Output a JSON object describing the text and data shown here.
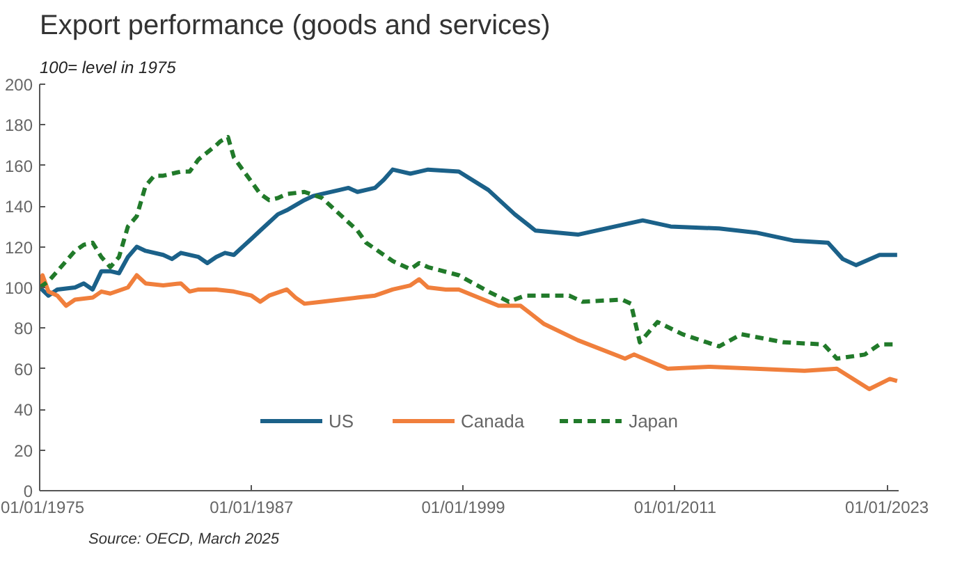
{
  "chart_data": {
    "type": "line",
    "title": "Export performance (goods and services)",
    "subtitle": "100= level in 1975",
    "annotations": [
      "Source: OECD, March 2025"
    ],
    "xlim": [
      "1975-01-01",
      "2023-09-01"
    ],
    "xticks": [
      {
        "value": "1975-01-01",
        "label": "01/01/1975"
      },
      {
        "value": "1987-01-01",
        "label": "01/01/1987"
      },
      {
        "value": "1999-01-01",
        "label": "01/01/1999"
      },
      {
        "value": "2011-01-01",
        "label": "01/01/2011"
      },
      {
        "value": "2023-01-01",
        "label": "01/01/2023"
      }
    ],
    "ylim": [
      0,
      200
    ],
    "yticks": [
      0,
      20,
      40,
      60,
      80,
      100,
      120,
      140,
      160,
      180,
      200
    ],
    "grid": false,
    "legend": "bottom",
    "series": [
      {
        "name": "US",
        "color": "#1b6189",
        "line_style": "solid",
        "x": [
          "1975-01",
          "1975-07",
          "1976-01",
          "1977-01",
          "1977-07",
          "1978-01",
          "1978-07",
          "1979-01",
          "1979-07",
          "1980-01",
          "1980-07",
          "1981-01",
          "1982-01",
          "1982-07",
          "1983-01",
          "1984-01",
          "1984-07",
          "1985-01",
          "1985-07",
          "1986-01",
          "1986-07",
          "1987-01",
          "1987-07",
          "1988-01",
          "1988-07",
          "1989-01",
          "1990-01",
          "1990-07",
          "1991-01",
          "1992-01",
          "1992-07",
          "1993-01",
          "1994-01",
          "1994-07",
          "1995-01",
          "1996-01",
          "1996-07",
          "1997-01",
          "1998-10",
          "2000-06",
          "2001-12",
          "2003-02",
          "2005-07",
          "2009-03",
          "2010-10",
          "2013-07",
          "2015-08",
          "2017-10",
          "2019-09",
          "2020-07",
          "2021-04",
          "2022-08",
          "2023-08"
        ],
        "values": [
          100,
          96,
          99,
          100,
          102,
          99,
          108,
          108,
          107,
          115,
          120,
          118,
          116,
          114,
          117,
          115,
          112,
          115,
          117,
          116,
          120,
          124,
          128,
          132,
          136,
          138,
          143,
          145,
          146,
          148,
          149,
          147,
          149,
          153,
          158,
          156,
          157,
          158,
          157,
          148,
          136,
          128,
          126,
          133,
          130,
          129,
          127,
          123,
          122,
          114,
          111,
          116,
          116
        ]
      },
      {
        "name": "Canada",
        "color": "#f07f3c",
        "line_style": "solid",
        "x": [
          "1975-01",
          "1975-03",
          "1975-07",
          "1976-01",
          "1976-07",
          "1977-01",
          "1978-01",
          "1978-07",
          "1979-01",
          "1980-01",
          "1980-07",
          "1981-01",
          "1982-01",
          "1983-01",
          "1983-07",
          "1984-01",
          "1985-01",
          "1986-01",
          "1987-01",
          "1987-07",
          "1988-01",
          "1989-01",
          "1989-07",
          "1990-01",
          "1991-01",
          "1992-01",
          "1993-01",
          "1994-01",
          "1995-01",
          "1996-01",
          "1996-07",
          "1997-01",
          "1998-01",
          "1998-10",
          "2001-01",
          "2002-04",
          "2003-08",
          "2005-07",
          "2008-03",
          "2008-09",
          "2010-08",
          "2013-01",
          "2015-08",
          "2018-05",
          "2020-03",
          "2022-01",
          "2023-03",
          "2023-08"
        ],
        "values": [
          100,
          106,
          98,
          96,
          91,
          94,
          95,
          98,
          97,
          100,
          106,
          102,
          101,
          102,
          98,
          99,
          99,
          98,
          96,
          93,
          96,
          99,
          95,
          92,
          93,
          94,
          95,
          96,
          99,
          101,
          104,
          100,
          99,
          99,
          91,
          91,
          82,
          74,
          65,
          67,
          60,
          61,
          60,
          59,
          60,
          50,
          55,
          54
        ]
      },
      {
        "name": "Japan",
        "color": "#217a2a",
        "line_style": "dashed",
        "x": [
          "1975-01",
          "1975-07",
          "1976-01",
          "1977-01",
          "1977-07",
          "1978-01",
          "1978-07",
          "1979-01",
          "1979-07",
          "1980-01",
          "1980-07",
          "1981-01",
          "1981-07",
          "1982-01",
          "1983-01",
          "1983-07",
          "1984-01",
          "1985-01",
          "1985-04",
          "1985-09",
          "1986-01",
          "1986-07",
          "1987-01",
          "1987-07",
          "1988-01",
          "1988-07",
          "1989-01",
          "1990-01",
          "1991-01",
          "1992-01",
          "1993-01",
          "1993-07",
          "1994-01",
          "1995-01",
          "1996-01",
          "1996-07",
          "1997-01",
          "1998-10",
          "2000-06",
          "2001-08",
          "2002-07",
          "2005-01",
          "2005-10",
          "2008-01",
          "2008-07",
          "2009-01",
          "2010-01",
          "2011-06",
          "2013-07",
          "2014-10",
          "2017-03",
          "2019-06",
          "2020-03",
          "2021-10",
          "2022-08",
          "2023-08"
        ],
        "values": [
          100,
          103,
          108,
          118,
          121,
          122,
          115,
          110,
          115,
          130,
          135,
          150,
          155,
          155,
          157,
          157,
          163,
          170,
          172,
          174,
          164,
          158,
          152,
          146,
          143,
          144,
          146,
          147,
          144,
          136,
          128,
          122,
          119,
          113,
          109,
          112,
          110,
          106,
          98,
          93,
          96,
          96,
          93,
          94,
          92,
          73,
          83,
          77,
          71,
          77,
          73,
          72,
          65,
          67,
          72,
          72
        ]
      }
    ]
  }
}
